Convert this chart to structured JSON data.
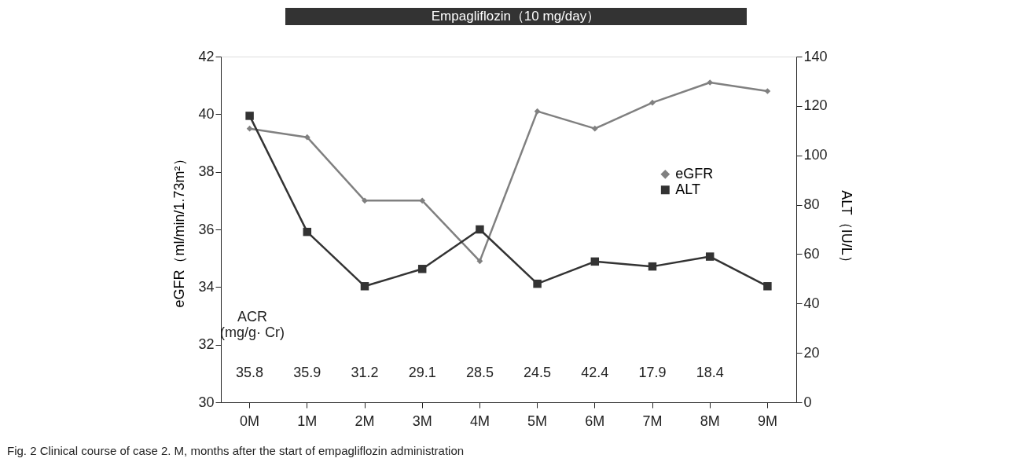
{
  "chart_data": {
    "type": "line",
    "title": "Empagliflozin（10 mg/day）",
    "categories": [
      "0M",
      "1M",
      "2M",
      "3M",
      "4M",
      "5M",
      "6M",
      "7M",
      "8M",
      "9M"
    ],
    "ylabel": "eGFR（ml/min/1.73m²）",
    "y2label": "ALT（IU/L）",
    "ylim": [
      30,
      42
    ],
    "yticks": [
      30,
      32,
      34,
      36,
      38,
      40,
      42
    ],
    "y2lim": [
      0,
      140
    ],
    "y2ticks": [
      0,
      20,
      40,
      60,
      80,
      100,
      120,
      140
    ],
    "series": [
      {
        "name": "eGFR",
        "color": "#808080",
        "marker": "diamond",
        "values": [
          39.5,
          39.2,
          37.0,
          37.0,
          34.9,
          40.1,
          39.5,
          40.4,
          41.1,
          40.8
        ]
      },
      {
        "name": "ALT",
        "color": "#333333",
        "marker": "square",
        "axis": "y2",
        "values": [
          116,
          69,
          47,
          54,
          70,
          48,
          57,
          55,
          59,
          47
        ]
      }
    ],
    "annotations": [
      "ACR\n(mg/g· Cr)",
      "Fig. 2 Clinical course of case 2. M, months after the start of empagliflozin administration",
      "35.8",
      "35.9",
      "31.2",
      "29.1",
      "28.5",
      "24.5",
      "42.4",
      "17.9",
      "18.4"
    ],
    "grid": false,
    "legend": "right",
    "line_style": "solid"
  }
}
